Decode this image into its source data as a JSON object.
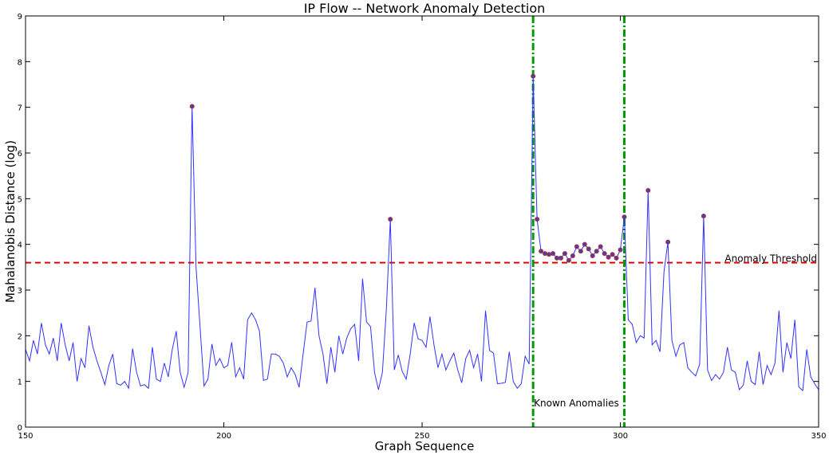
{
  "chart_data": {
    "type": "line",
    "title": "IP Flow -- Network Anomaly Detection",
    "xlabel": "Graph Sequence",
    "ylabel": "Mahalanobis Distance (log)",
    "xlim": [
      150,
      350
    ],
    "ylim": [
      0,
      9
    ],
    "xticks": [
      150,
      200,
      250,
      300,
      350
    ],
    "yticks": [
      0,
      1,
      2,
      3,
      4,
      5,
      6,
      7,
      8,
      9
    ],
    "grid": false,
    "colors": {
      "line": "#3333ff",
      "threshold": "#e60000",
      "anomaly_marker": "#5a3aa0",
      "marker_edge": "#b03030",
      "known": "#009900"
    },
    "threshold": {
      "value": 3.6,
      "label": "Anomaly Threshold"
    },
    "known_anomalies": {
      "x": [
        278,
        301
      ],
      "label": "Known Anomalies"
    },
    "series": [
      {
        "x": [
          150,
          151,
          152,
          153,
          154,
          155,
          156,
          157,
          158,
          159,
          160,
          161,
          162,
          163,
          164,
          165,
          166,
          167,
          168,
          169,
          170,
          171,
          172,
          173,
          174,
          175,
          176,
          177,
          178,
          179,
          180,
          181,
          182,
          183,
          184,
          185,
          186,
          187,
          188,
          189,
          190,
          191,
          192,
          193,
          194,
          195,
          196,
          197,
          198,
          199,
          200,
          201,
          202,
          203,
          204,
          205,
          206,
          207,
          208,
          209,
          210,
          211,
          212,
          213,
          214,
          215,
          216,
          217,
          218,
          219,
          220,
          221,
          222,
          223,
          224,
          225,
          226,
          227,
          228,
          229,
          230,
          231,
          232,
          233,
          234,
          235,
          236,
          237,
          238,
          239,
          240,
          241,
          242,
          243,
          244,
          245,
          246,
          247,
          248,
          249,
          250,
          251,
          252,
          253,
          254,
          255,
          256,
          257,
          258,
          259,
          260,
          261,
          262,
          263,
          264,
          265,
          266,
          267,
          268,
          269,
          270,
          271,
          272,
          273,
          274,
          275,
          276,
          277,
          278,
          279,
          280,
          281,
          282,
          283,
          284,
          285,
          286,
          287,
          288,
          289,
          290,
          291,
          292,
          293,
          294,
          295,
          296,
          297,
          298,
          299,
          300,
          301,
          302,
          303,
          304,
          305,
          306,
          307,
          308,
          309,
          310,
          311,
          312,
          313,
          314,
          315,
          316,
          317,
          318,
          319,
          320,
          321,
          322,
          323,
          324,
          325,
          326,
          327,
          328,
          329,
          330,
          331,
          332,
          333,
          334,
          335,
          336,
          337,
          338,
          339,
          340,
          341,
          342,
          343,
          344,
          345,
          346,
          347,
          348,
          349,
          350
        ],
        "y": [
          1.7,
          1.45,
          1.9,
          1.6,
          2.28,
          1.8,
          1.6,
          1.95,
          1.45,
          2.28,
          1.8,
          1.45,
          1.85,
          1.0,
          1.5,
          1.3,
          2.22,
          1.75,
          1.45,
          1.2,
          0.93,
          1.35,
          1.6,
          0.95,
          0.92,
          1.0,
          0.85,
          1.72,
          1.2,
          0.9,
          0.93,
          0.85,
          1.75,
          1.05,
          1.0,
          1.4,
          1.1,
          1.7,
          2.1,
          1.2,
          0.87,
          1.2,
          7.02,
          3.5,
          2.2,
          0.9,
          1.05,
          1.82,
          1.35,
          1.5,
          1.3,
          1.35,
          1.86,
          1.1,
          1.3,
          1.05,
          2.35,
          2.5,
          2.35,
          2.1,
          1.02,
          1.05,
          1.6,
          1.6,
          1.55,
          1.4,
          1.1,
          1.3,
          1.15,
          0.87,
          1.6,
          2.3,
          2.32,
          3.05,
          2.0,
          1.6,
          0.95,
          1.75,
          1.2,
          2.0,
          1.6,
          1.95,
          2.15,
          2.25,
          1.45,
          3.25,
          2.3,
          2.2,
          1.2,
          0.82,
          1.2,
          2.6,
          4.55,
          1.25,
          1.58,
          1.22,
          1.05,
          1.6,
          2.28,
          1.93,
          1.9,
          1.75,
          2.42,
          1.8,
          1.3,
          1.6,
          1.25,
          1.45,
          1.62,
          1.25,
          0.97,
          1.5,
          1.68,
          1.3,
          1.6,
          1.0,
          2.55,
          1.68,
          1.62,
          0.95,
          0.96,
          0.98,
          1.65,
          1.0,
          0.85,
          0.95,
          1.55,
          1.38,
          7.68,
          4.55,
          3.85,
          3.8,
          3.78,
          3.8,
          3.7,
          3.7,
          3.8,
          3.65,
          3.75,
          3.95,
          3.85,
          4.0,
          3.9,
          3.75,
          3.85,
          3.95,
          3.8,
          3.72,
          3.78,
          3.7,
          3.88,
          4.6,
          2.35,
          2.25,
          1.85,
          2.0,
          1.95,
          5.18,
          1.8,
          1.9,
          1.65,
          3.4,
          4.05,
          1.9,
          1.55,
          1.8,
          1.85,
          1.3,
          1.2,
          1.12,
          1.38,
          4.62,
          1.25,
          1.02,
          1.15,
          1.05,
          1.2,
          1.75,
          1.25,
          1.2,
          0.82,
          0.92,
          1.45,
          1.0,
          0.93,
          1.65,
          0.93,
          1.35,
          1.15,
          1.4,
          2.55,
          1.2,
          1.85,
          1.5,
          2.35,
          0.88,
          0.8,
          1.7,
          1.1,
          0.95,
          0.82
        ]
      }
    ],
    "anomaly_points": {
      "x": [
        192,
        242,
        278,
        279,
        280,
        281,
        282,
        283,
        284,
        285,
        286,
        287,
        288,
        289,
        290,
        291,
        292,
        293,
        294,
        295,
        296,
        297,
        298,
        299,
        300,
        301,
        307,
        312,
        321
      ],
      "y": [
        7.02,
        4.55,
        7.68,
        4.55,
        3.85,
        3.8,
        3.78,
        3.8,
        3.7,
        3.7,
        3.8,
        3.65,
        3.75,
        3.95,
        3.85,
        4.0,
        3.9,
        3.75,
        3.85,
        3.95,
        3.8,
        3.72,
        3.78,
        3.7,
        3.88,
        4.6,
        5.18,
        4.05,
        4.62
      ]
    }
  }
}
